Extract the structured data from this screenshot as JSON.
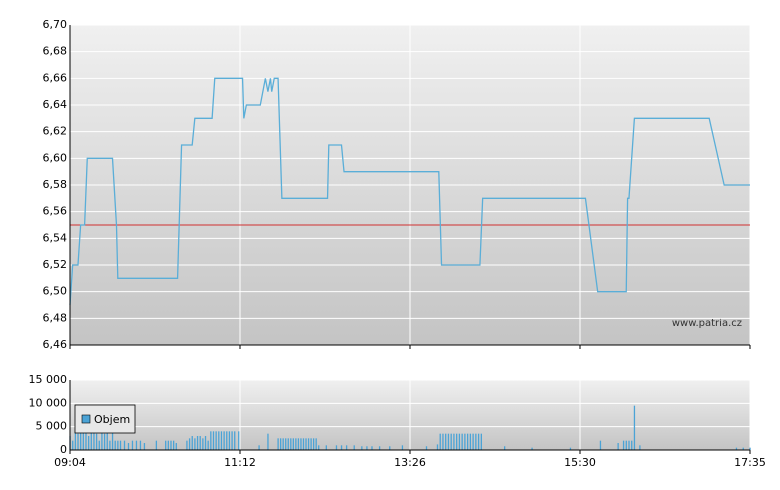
{
  "chart_data": [
    {
      "type": "line",
      "x": [
        544,
        546,
        550,
        552,
        555,
        557,
        576,
        579,
        580,
        625,
        628,
        636,
        638,
        651,
        653,
        674,
        675,
        677,
        688,
        692,
        694,
        696,
        697,
        699,
        702,
        705,
        741,
        742,
        752,
        754,
        827,
        829,
        857,
        859,
        934,
        943,
        964,
        965,
        966,
        970,
        1025,
        1036,
        1055
      ],
      "series": [
        {
          "color": "#5aaed8",
          "values": [
            6.49,
            6.52,
            6.52,
            6.55,
            6.55,
            6.6,
            6.6,
            6.55,
            6.51,
            6.51,
            6.61,
            6.61,
            6.63,
            6.63,
            6.66,
            6.66,
            6.63,
            6.64,
            6.64,
            6.66,
            6.65,
            6.66,
            6.65,
            6.66,
            6.66,
            6.57,
            6.57,
            6.61,
            6.61,
            6.59,
            6.59,
            6.52,
            6.52,
            6.57,
            6.57,
            6.5,
            6.5,
            6.57,
            6.57,
            6.63,
            6.63,
            6.58,
            6.58
          ]
        }
      ],
      "reference_line": {
        "value": 6.55,
        "color": "#d03030"
      },
      "xlim": [
        544,
        1055
      ],
      "ylim": [
        6.46,
        6.7
      ],
      "yticks": [
        {
          "value": 6.46,
          "label": "6,46"
        },
        {
          "value": 6.48,
          "label": "6,48"
        },
        {
          "value": 6.5,
          "label": "6,50"
        },
        {
          "value": 6.52,
          "label": "6,52"
        },
        {
          "value": 6.54,
          "label": "6,54"
        },
        {
          "value": 6.56,
          "label": "6,56"
        },
        {
          "value": 6.58,
          "label": "6,58"
        },
        {
          "value": 6.6,
          "label": "6,60"
        },
        {
          "value": 6.62,
          "label": "6,62"
        },
        {
          "value": 6.64,
          "label": "6,64"
        },
        {
          "value": 6.66,
          "label": "6,66"
        },
        {
          "value": 6.68,
          "label": "6,68"
        },
        {
          "value": 6.7,
          "label": "6,70"
        }
      ],
      "grid": true,
      "annotation": "www.patria.cz"
    },
    {
      "type": "bar",
      "x": [
        544,
        546,
        548,
        550,
        552,
        554,
        556,
        558,
        560,
        562,
        564,
        566,
        568,
        570,
        572,
        574,
        576,
        578,
        580,
        582,
        585,
        588,
        591,
        594,
        597,
        600,
        609,
        616,
        618,
        620,
        622,
        624,
        632,
        634,
        636,
        638,
        640,
        642,
        644,
        646,
        648,
        650,
        652,
        654,
        656,
        658,
        660,
        662,
        664,
        666,
        668,
        671,
        687,
        694,
        702,
        704,
        706,
        708,
        710,
        712,
        714,
        716,
        718,
        720,
        722,
        724,
        726,
        728,
        730,
        732,
        734,
        740,
        748,
        752,
        756,
        762,
        768,
        772,
        776,
        782,
        790,
        800,
        818,
        826,
        828,
        830,
        832,
        834,
        836,
        838,
        840,
        842,
        844,
        846,
        848,
        850,
        852,
        854,
        856,
        858,
        875,
        895,
        923,
        945,
        958,
        962,
        964,
        966,
        968,
        970,
        974,
        1045,
        1050,
        1055
      ],
      "series": [
        {
          "name": "Objem",
          "color": "#4ba3d6",
          "values": [
            3000,
            2000,
            4000,
            3500,
            4000,
            8000,
            4000,
            3000,
            4000,
            4000,
            3500,
            2000,
            4000,
            3500,
            4000,
            2000,
            4000,
            2000,
            2000,
            2000,
            2000,
            1500,
            2000,
            2000,
            2000,
            1500,
            2000,
            2000,
            2000,
            2000,
            2000,
            1500,
            2000,
            2500,
            3000,
            2500,
            3000,
            3000,
            2500,
            3000,
            2000,
            4000,
            4000,
            4000,
            4000,
            4000,
            4000,
            4000,
            4000,
            4000,
            4000,
            4000,
            1000,
            3500,
            2500,
            2500,
            2500,
            2500,
            2500,
            2500,
            2500,
            2500,
            2500,
            2500,
            2500,
            2500,
            2500,
            2500,
            2500,
            2500,
            1000,
            1000,
            1000,
            1000,
            1000,
            1000,
            800,
            800,
            800,
            800,
            800,
            1000,
            800,
            1200,
            3500,
            3500,
            3500,
            3500,
            3500,
            3500,
            3500,
            3500,
            3500,
            3500,
            3500,
            3500,
            3500,
            3500,
            3500,
            3500,
            800,
            500,
            500,
            2000,
            1500,
            2000,
            2000,
            2000,
            2000,
            9500,
            1000,
            500,
            500,
            500
          ]
        }
      ],
      "xlim": [
        544,
        1055
      ],
      "xticks": [
        {
          "value": 544,
          "label": "09:04"
        },
        {
          "value": 672,
          "label": "11:12"
        },
        {
          "value": 806,
          "label": "13:26"
        },
        {
          "value": 930,
          "label": "15:30"
        },
        {
          "value": 1055,
          "label": "17:35"
        }
      ],
      "ylim": [
        0,
        15000
      ],
      "yticks": [
        0,
        {
          "value": 5000,
          "label": "5 000"
        },
        {
          "value": 10000,
          "label": "10 000"
        },
        {
          "value": 15000,
          "label": "15 000"
        }
      ],
      "grid": true
    }
  ]
}
